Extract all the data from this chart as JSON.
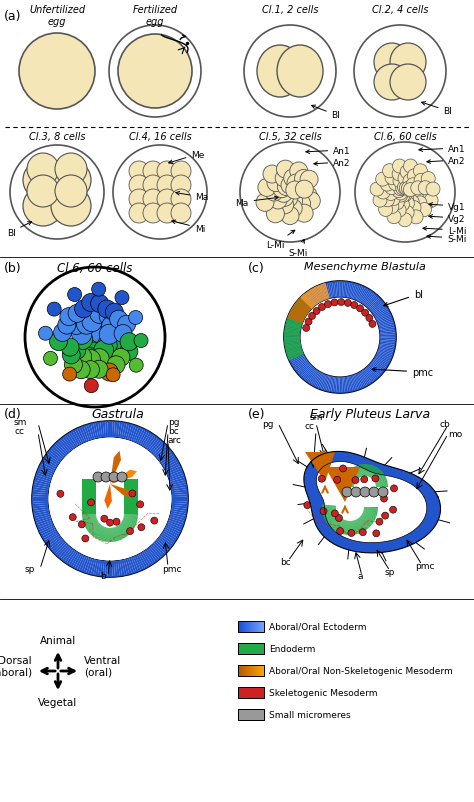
{
  "background_color": "#ffffff",
  "egg_fill": "#f5e6b8",
  "egg_outline": "#555555",
  "blue_ecto": "#2255cc",
  "blue_ecto2": "#4488ee",
  "green_endo": "#22aa44",
  "orange_nsk": "#cc6600",
  "orange_nsk2": "#ee9933",
  "red_sk": "#cc2222",
  "gray_sm": "#999999",
  "legend_items": [
    {
      "label": "Aboral/Oral Ectoderm",
      "color": "#2255cc"
    },
    {
      "label": "Endoderm",
      "color": "#22aa44"
    },
    {
      "label": "Aboral/Oral Non-Skeletogenic Mesoderm",
      "color": "#cc6600"
    },
    {
      "label": "Skeletogenic Mesoderm",
      "color": "#cc2222"
    },
    {
      "label": "Small micromeres",
      "color": "#999999"
    }
  ]
}
